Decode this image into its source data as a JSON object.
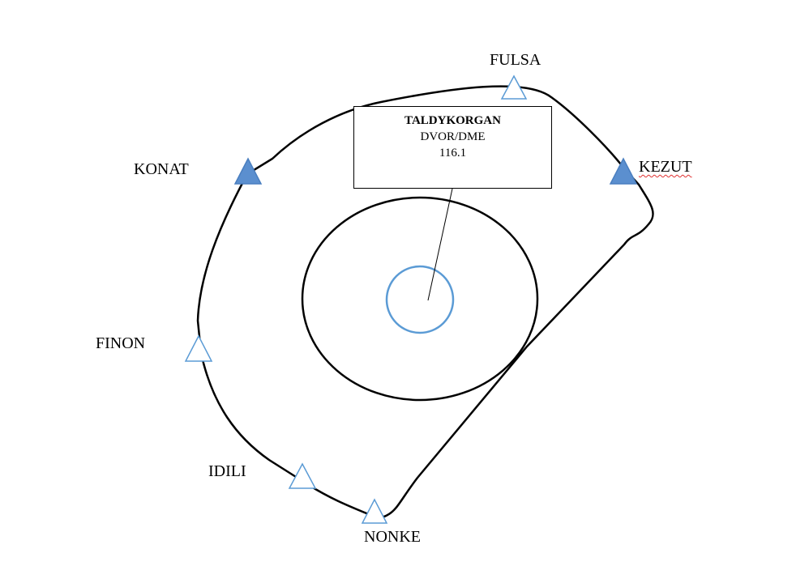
{
  "navaid": {
    "name": "TALDYKORGAN",
    "type": "DVOR/DME",
    "frequency": "116.1"
  },
  "waypoints": [
    {
      "name": "FULSA",
      "symbol": "open-triangle"
    },
    {
      "name": "KEZUT",
      "symbol": "filled-triangle",
      "spellcheck_flag": true
    },
    {
      "name": "KONAT",
      "symbol": "filled-triangle"
    },
    {
      "name": "FINON",
      "symbol": "open-triangle"
    },
    {
      "name": "IDILI",
      "symbol": "open-triangle"
    },
    {
      "name": "NONKE",
      "symbol": "open-triangle"
    }
  ],
  "colors": {
    "triangle_fill": "#5b8fcf",
    "triangle_stroke": "#4a7fc0",
    "open_triangle_stroke": "#5b9bd5",
    "inner_circle": "#5b9bd5",
    "line": "#000000"
  }
}
